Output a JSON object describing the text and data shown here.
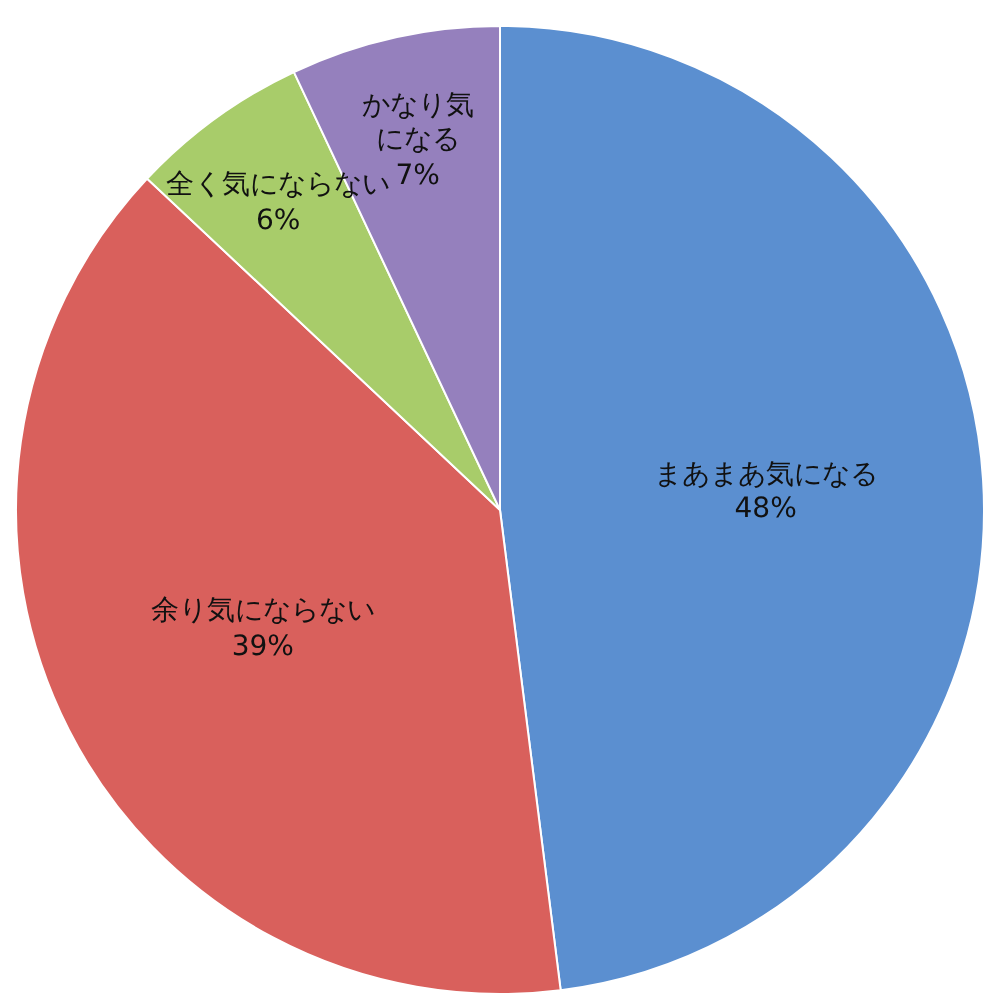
{
  "chart_data": {
    "type": "pie",
    "categories": [
      "まあまあ気になる",
      "余り気にならない",
      "全く気にならない",
      "かなり気になる"
    ],
    "values": [
      48,
      39,
      6,
      7
    ],
    "value_labels": [
      "48%",
      "39%",
      "6%",
      "7%"
    ],
    "colors": [
      "#5b8fd0",
      "#d9605c",
      "#a8cc6a",
      "#9580bd"
    ]
  }
}
